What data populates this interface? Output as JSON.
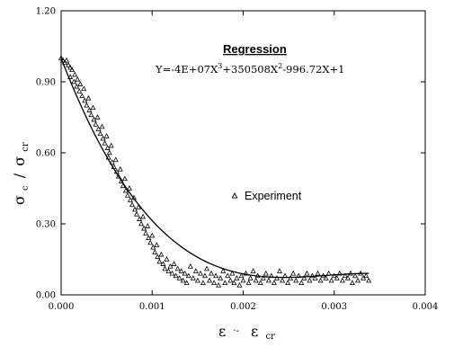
{
  "chart_data": {
    "type": "scatter",
    "title": "",
    "xlabel": {
      "main": "ε",
      "mid": "·-",
      "main2": "ε",
      "sub": "cr"
    },
    "ylabel": {
      "main": "σ",
      "sub": "c",
      "sep": "/",
      "main2": "σ",
      "sub2": "cr"
    },
    "xlim": [
      0,
      0.004
    ],
    "ylim": [
      0,
      1.2
    ],
    "xticks": [
      "0.000",
      "0.001",
      "0.002",
      "0.003",
      "0.004"
    ],
    "xtick_values": [
      0,
      0.001,
      0.002,
      0.003,
      0.004
    ],
    "yticks": [
      "0.00",
      "0.30",
      "0.60",
      "0.90",
      "1.20"
    ],
    "ytick_values": [
      0,
      0.3,
      0.6,
      0.9,
      1.2
    ],
    "grid": false,
    "annotation": {
      "heading": "Regression",
      "equation": {
        "parts": [
          {
            "t": "Y=-4E+07X",
            "sup": false
          },
          {
            "t": "3",
            "sup": true
          },
          {
            "t": "+350508X",
            "sup": false
          },
          {
            "t": "2",
            "sup": true
          },
          {
            "t": "-996.72X+1",
            "sup": false
          }
        ]
      }
    },
    "series": [
      {
        "name": "Experiment",
        "kind": "scatter",
        "marker": "triangle",
        "color": "#000000",
        "points": [
          [
            0.0,
            1.0
          ],
          [
            2e-05,
            0.99
          ],
          [
            4e-05,
            0.98
          ],
          [
            6e-05,
            0.99
          ],
          [
            8e-05,
            0.97
          ],
          [
            0.0001,
            0.96
          ],
          [
            0.0001,
            0.92
          ],
          [
            0.00012,
            0.95
          ],
          [
            0.00014,
            0.9
          ],
          [
            0.00015,
            0.93
          ],
          [
            0.00017,
            0.88
          ],
          [
            0.00018,
            0.91
          ],
          [
            0.0002,
            0.86
          ],
          [
            0.00021,
            0.89
          ],
          [
            0.00023,
            0.84
          ],
          [
            0.00025,
            0.87
          ],
          [
            0.00026,
            0.82
          ],
          [
            0.00028,
            0.8
          ],
          [
            0.0003,
            0.83
          ],
          [
            0.00031,
            0.78
          ],
          [
            0.00033,
            0.76
          ],
          [
            0.00035,
            0.79
          ],
          [
            0.00036,
            0.74
          ],
          [
            0.00038,
            0.72
          ],
          [
            0.0004,
            0.75
          ],
          [
            0.00041,
            0.7
          ],
          [
            0.00043,
            0.68
          ],
          [
            0.00045,
            0.71
          ],
          [
            0.00046,
            0.66
          ],
          [
            0.00048,
            0.64
          ],
          [
            0.0005,
            0.67
          ],
          [
            0.00051,
            0.62
          ],
          [
            0.00052,
            0.58
          ],
          [
            0.00053,
            0.6
          ],
          [
            0.00055,
            0.63
          ],
          [
            0.00056,
            0.56
          ],
          [
            0.00058,
            0.54
          ],
          [
            0.0006,
            0.57
          ],
          [
            0.00061,
            0.52
          ],
          [
            0.00063,
            0.5
          ],
          [
            0.00065,
            0.53
          ],
          [
            0.00066,
            0.48
          ],
          [
            0.00068,
            0.46
          ],
          [
            0.0007,
            0.49
          ],
          [
            0.00071,
            0.44
          ],
          [
            0.00073,
            0.42
          ],
          [
            0.00075,
            0.45
          ],
          [
            0.00076,
            0.4
          ],
          [
            0.00078,
            0.38
          ],
          [
            0.0008,
            0.41
          ],
          [
            0.00081,
            0.36
          ],
          [
            0.00083,
            0.34
          ],
          [
            0.00085,
            0.37
          ],
          [
            0.00086,
            0.32
          ],
          [
            0.00088,
            0.3
          ],
          [
            0.0009,
            0.33
          ],
          [
            0.00091,
            0.28
          ],
          [
            0.00093,
            0.26
          ],
          [
            0.00095,
            0.29
          ],
          [
            0.00096,
            0.24
          ],
          [
            0.00098,
            0.22
          ],
          [
            0.001,
            0.25
          ],
          [
            0.00101,
            0.2
          ],
          [
            0.00103,
            0.18
          ],
          [
            0.00105,
            0.21
          ],
          [
            0.00106,
            0.16
          ],
          [
            0.00108,
            0.14
          ],
          [
            0.0011,
            0.17
          ],
          [
            0.00112,
            0.13
          ],
          [
            0.00114,
            0.11
          ],
          [
            0.00116,
            0.15
          ],
          [
            0.00118,
            0.1
          ],
          [
            0.0012,
            0.12
          ],
          [
            0.00122,
            0.09
          ],
          [
            0.00124,
            0.13
          ],
          [
            0.00126,
            0.08
          ],
          [
            0.00128,
            0.11
          ],
          [
            0.0013,
            0.07
          ],
          [
            0.00132,
            0.1
          ],
          [
            0.00134,
            0.06
          ],
          [
            0.00136,
            0.09
          ],
          [
            0.00138,
            0.05
          ],
          [
            0.0014,
            0.08
          ],
          [
            0.00142,
            0.12
          ],
          [
            0.00145,
            0.07
          ],
          [
            0.00148,
            0.1
          ],
          [
            0.0015,
            0.06
          ],
          [
            0.00153,
            0.09
          ],
          [
            0.00156,
            0.05
          ],
          [
            0.00158,
            0.08
          ],
          [
            0.0016,
            0.11
          ],
          [
            0.00163,
            0.06
          ],
          [
            0.00165,
            0.09
          ],
          [
            0.00168,
            0.05
          ],
          [
            0.0017,
            0.08
          ],
          [
            0.00173,
            0.04
          ],
          [
            0.00175,
            0.07
          ],
          [
            0.00178,
            0.1
          ],
          [
            0.0018,
            0.05
          ],
          [
            0.00183,
            0.08
          ],
          [
            0.00186,
            0.06
          ],
          [
            0.00188,
            0.09
          ],
          [
            0.0019,
            0.05
          ],
          [
            0.00193,
            0.07
          ],
          [
            0.00196,
            0.04
          ],
          [
            0.00198,
            0.08
          ],
          [
            0.002,
            0.06
          ],
          [
            0.00203,
            0.09
          ],
          [
            0.00206,
            0.05
          ],
          [
            0.00208,
            0.07
          ],
          [
            0.00211,
            0.1
          ],
          [
            0.00214,
            0.06
          ],
          [
            0.00216,
            0.08
          ],
          [
            0.00219,
            0.05
          ],
          [
            0.00222,
            0.07
          ],
          [
            0.00225,
            0.09
          ],
          [
            0.00228,
            0.06
          ],
          [
            0.00231,
            0.08
          ],
          [
            0.00234,
            0.05
          ],
          [
            0.00237,
            0.07
          ],
          [
            0.0024,
            0.1
          ],
          [
            0.00243,
            0.06
          ],
          [
            0.00246,
            0.08
          ],
          [
            0.00249,
            0.05
          ],
          [
            0.00252,
            0.07
          ],
          [
            0.00255,
            0.09
          ],
          [
            0.00258,
            0.06
          ],
          [
            0.00261,
            0.08
          ],
          [
            0.00264,
            0.05
          ],
          [
            0.00267,
            0.07
          ],
          [
            0.0027,
            0.09
          ],
          [
            0.00273,
            0.06
          ],
          [
            0.00276,
            0.08
          ],
          [
            0.00279,
            0.07
          ],
          [
            0.00282,
            0.09
          ],
          [
            0.00285,
            0.06
          ],
          [
            0.00288,
            0.08
          ],
          [
            0.00291,
            0.07
          ],
          [
            0.00294,
            0.09
          ],
          [
            0.00297,
            0.06
          ],
          [
            0.003,
            0.08
          ],
          [
            0.00303,
            0.07
          ],
          [
            0.00306,
            0.09
          ],
          [
            0.00309,
            0.06
          ],
          [
            0.00312,
            0.08
          ],
          [
            0.00315,
            0.07
          ],
          [
            0.00318,
            0.09
          ],
          [
            0.0032,
            0.05
          ],
          [
            0.00323,
            0.08
          ],
          [
            0.00326,
            0.06
          ],
          [
            0.00329,
            0.09
          ],
          [
            0.00332,
            0.07
          ],
          [
            0.00335,
            0.08
          ],
          [
            0.00338,
            0.06
          ]
        ]
      },
      {
        "name": "Regression",
        "kind": "line",
        "color": "#000000",
        "coefficients": {
          "a3": -40000000,
          "a2": 350508,
          "a1": -996.72,
          "a0": 1
        },
        "xrange": [
          0,
          0.00338
        ]
      }
    ],
    "legend": [
      {
        "label": "Experiment",
        "marker": "triangle"
      }
    ]
  }
}
